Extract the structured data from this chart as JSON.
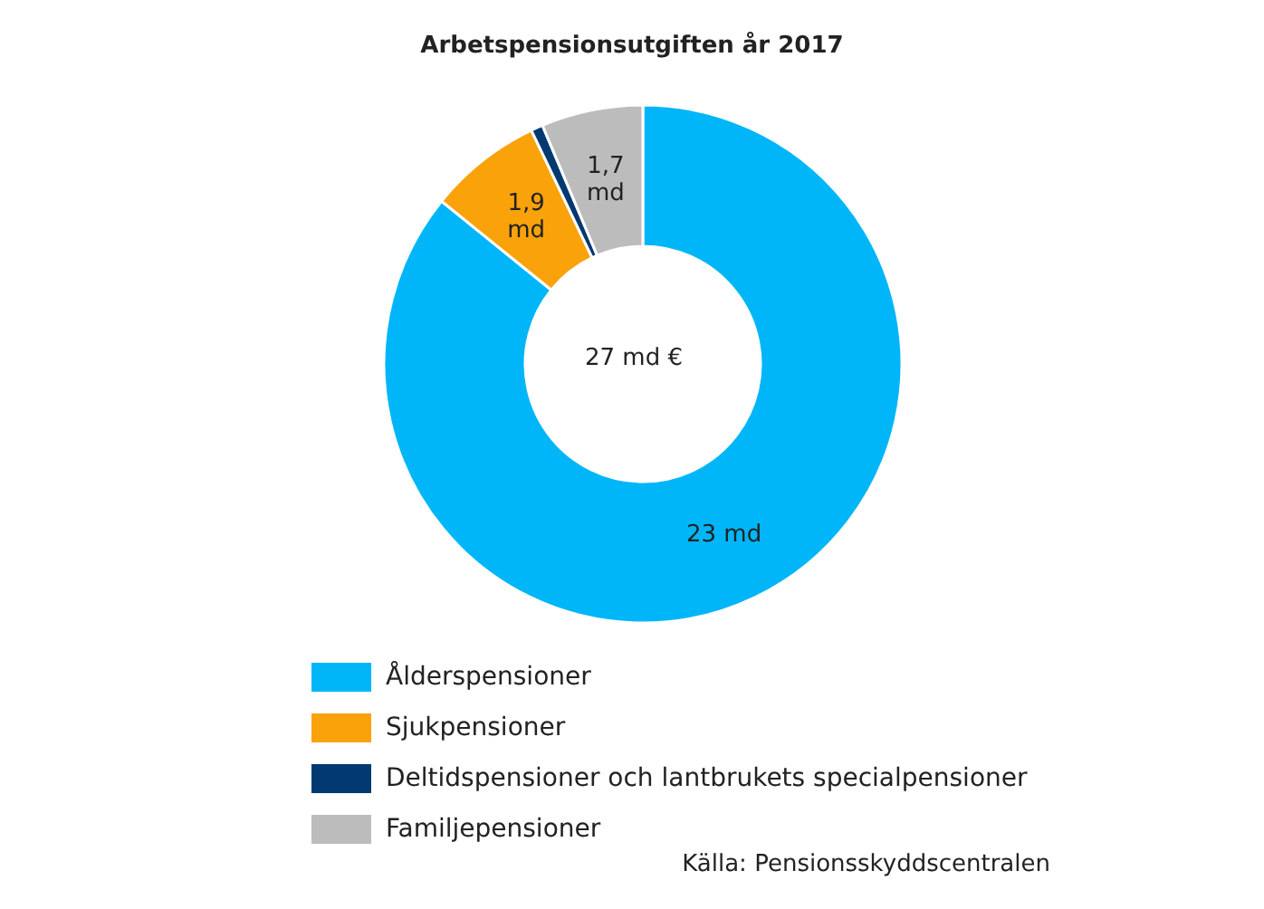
{
  "chart_data": {
    "type": "donut",
    "title": "Arbetspensionsutgiften år 2017",
    "categories": [
      "Ålderspensioner",
      "Sjukpensioner",
      "Deltidspensioner och lantbrukets specialpensioner",
      "Familjepensioner"
    ],
    "values": [
      23,
      1.9,
      0.2,
      1.7
    ],
    "colors": [
      "#00b6f8",
      "#f9a20a",
      "#003a70",
      "#bcbcbc"
    ],
    "value_labels": [
      "23 md",
      "1,9\nmd",
      null,
      "1,7\nmd"
    ],
    "annotations": [
      "27 md €",
      "Källa: Pensionsskyddscentralen"
    ],
    "legend": "bottom"
  }
}
